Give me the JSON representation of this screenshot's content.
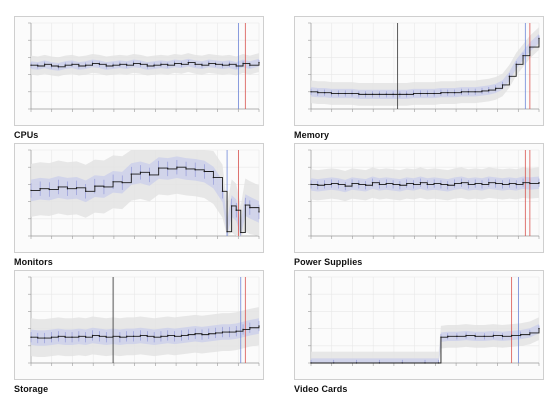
{
  "colors": {
    "line": "#1a1a1a",
    "band_outer": "#e3e3e3",
    "band_inner": "#ccd0ea",
    "band_blue": "#5b63c9",
    "marker_black": "#333333",
    "marker_red": "#d9534f",
    "marker_blue": "#6f87d8",
    "grid": "#e8e8e8"
  },
  "chart_data": [
    {
      "type": "line",
      "title": "CPUs",
      "ylim": [
        0,
        100
      ],
      "x": [
        0,
        3,
        6,
        9,
        12,
        15,
        18,
        21,
        24,
        27,
        30,
        33,
        36,
        39,
        42,
        45,
        48,
        51,
        54,
        57,
        60,
        63,
        66,
        69,
        72,
        75,
        78,
        81,
        84,
        87,
        90,
        93,
        96,
        100
      ],
      "series": [
        {
          "values": [
            51,
            50,
            52,
            50,
            49,
            51,
            52,
            50,
            51,
            53,
            52,
            50,
            51,
            52,
            51,
            53,
            52,
            50,
            51,
            52,
            51,
            53,
            52,
            54,
            52,
            51,
            53,
            52,
            51,
            52,
            50,
            53,
            51,
            54
          ]
        }
      ],
      "band_width": 5,
      "markers": [
        {
          "x": 91,
          "color": "marker_blue"
        },
        {
          "x": 94,
          "color": "marker_red"
        }
      ]
    },
    {
      "type": "line",
      "title": "Memory",
      "ylim": [
        0,
        100
      ],
      "x": [
        0,
        3,
        6,
        9,
        12,
        15,
        18,
        21,
        24,
        27,
        30,
        33,
        36,
        39,
        42,
        45,
        48,
        51,
        54,
        57,
        60,
        63,
        66,
        69,
        72,
        75,
        78,
        81,
        84,
        87,
        90,
        93,
        96,
        100
      ],
      "series": [
        {
          "values": [
            20,
            19,
            19,
            18,
            18,
            18,
            18,
            17,
            17,
            17,
            17,
            17,
            17,
            17,
            17,
            18,
            18,
            18,
            18,
            19,
            19,
            19,
            20,
            20,
            20,
            21,
            22,
            24,
            28,
            38,
            52,
            62,
            72,
            82
          ]
        }
      ],
      "band_width": 6,
      "markers": [
        {
          "x": 38,
          "color": "marker_black"
        },
        {
          "x": 94,
          "color": "marker_blue"
        },
        {
          "x": 96,
          "color": "marker_red"
        }
      ]
    },
    {
      "type": "line",
      "title": "Monitors",
      "ylim": [
        0,
        100
      ],
      "x": [
        0,
        4,
        8,
        12,
        16,
        20,
        24,
        28,
        32,
        36,
        40,
        44,
        48,
        52,
        56,
        60,
        64,
        68,
        72,
        76,
        80,
        84,
        86,
        88,
        90,
        92,
        94,
        96,
        100
      ],
      "series": [
        {
          "values": [
            53,
            55,
            54,
            57,
            55,
            56,
            52,
            58,
            57,
            63,
            62,
            72,
            74,
            71,
            79,
            78,
            80,
            78,
            77,
            75,
            68,
            52,
            5,
            35,
            30,
            4,
            36,
            33,
            28
          ]
        }
      ],
      "band_width": 14,
      "markers": [
        {
          "x": 86,
          "color": "marker_blue"
        },
        {
          "x": 91,
          "color": "marker_red"
        }
      ]
    },
    {
      "type": "line",
      "title": "Power Supplies",
      "ylim": [
        0,
        100
      ],
      "x": [
        0,
        3,
        6,
        9,
        12,
        15,
        18,
        21,
        24,
        27,
        30,
        33,
        36,
        39,
        42,
        45,
        48,
        51,
        54,
        57,
        60,
        63,
        66,
        69,
        72,
        75,
        78,
        81,
        84,
        87,
        90,
        93,
        96,
        100
      ],
      "series": [
        {
          "values": [
            60,
            59,
            60,
            61,
            60,
            58,
            61,
            60,
            59,
            62,
            60,
            61,
            60,
            59,
            61,
            60,
            62,
            60,
            61,
            60,
            59,
            61,
            62,
            60,
            61,
            60,
            62,
            61,
            60,
            61,
            60,
            62,
            61,
            62
          ]
        }
      ],
      "band_width": 8,
      "markers": [
        {
          "x": 94,
          "color": "marker_red"
        },
        {
          "x": 96,
          "color": "marker_red"
        }
      ]
    },
    {
      "type": "line",
      "title": "Storage",
      "ylim": [
        0,
        100
      ],
      "x": [
        0,
        3,
        6,
        9,
        12,
        15,
        18,
        21,
        24,
        27,
        30,
        33,
        36,
        39,
        42,
        45,
        48,
        51,
        54,
        57,
        60,
        63,
        66,
        69,
        72,
        75,
        78,
        81,
        84,
        87,
        90,
        93,
        96,
        100
      ],
      "series": [
        {
          "values": [
            30,
            29,
            29,
            30,
            31,
            30,
            30,
            31,
            30,
            32,
            31,
            30,
            31,
            30,
            31,
            31,
            32,
            31,
            30,
            31,
            32,
            31,
            32,
            33,
            34,
            33,
            34,
            35,
            36,
            36,
            37,
            39,
            41,
            43
          ]
        }
      ],
      "band_width": 10,
      "markers": [
        {
          "x": 36,
          "color": "marker_black"
        },
        {
          "x": 92,
          "color": "marker_blue"
        },
        {
          "x": 94,
          "color": "marker_red"
        }
      ]
    },
    {
      "type": "line",
      "title": "Video Cards",
      "ylim": [
        0,
        100
      ],
      "x": [
        0,
        10,
        20,
        30,
        40,
        50,
        56,
        57,
        60,
        64,
        68,
        72,
        76,
        80,
        84,
        88,
        92,
        96,
        100
      ],
      "series": [
        {
          "values": [
            0,
            0,
            0,
            0,
            0,
            0,
            0,
            30,
            31,
            31,
            32,
            31,
            31,
            32,
            31,
            32,
            33,
            35,
            40
          ]
        }
      ],
      "band_width": 6,
      "markers": [
        {
          "x": 88,
          "color": "marker_red"
        },
        {
          "x": 91,
          "color": "marker_blue"
        }
      ]
    }
  ]
}
